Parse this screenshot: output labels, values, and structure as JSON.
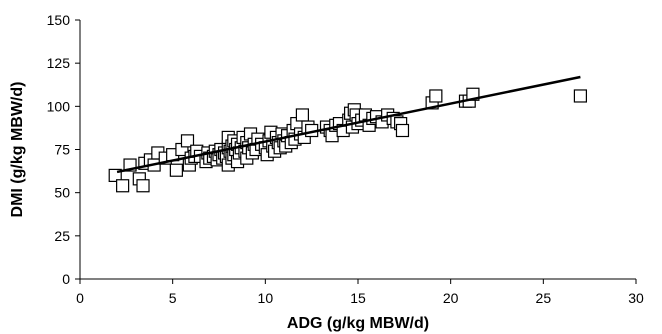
{
  "chart_data": {
    "type": "scatter",
    "title": "",
    "xlabel": "ADG (g/kg MBW/d)",
    "ylabel": "DMI (g/kg MBW/d)",
    "xlim": [
      0,
      30
    ],
    "ylim": [
      0,
      150
    ],
    "xticks": [
      0,
      5,
      10,
      15,
      20,
      25,
      30
    ],
    "yticks": [
      0,
      25,
      50,
      75,
      100,
      125,
      150
    ],
    "grid": false,
    "legend": "none",
    "marker": "open-square",
    "colors": {
      "marker": "#000000",
      "line": "#000000",
      "axis": "#000000"
    },
    "series": [
      {
        "points": [
          [
            1.9,
            60
          ],
          [
            2.3,
            54
          ],
          [
            2.7,
            66
          ],
          [
            3.2,
            58
          ],
          [
            3.4,
            54
          ],
          [
            3.5,
            67
          ],
          [
            3.8,
            69
          ],
          [
            4.0,
            66
          ],
          [
            4.2,
            73
          ],
          [
            4.6,
            70
          ],
          [
            5.0,
            72
          ],
          [
            5.2,
            63
          ],
          [
            5.5,
            75
          ],
          [
            5.8,
            80
          ],
          [
            5.9,
            66
          ],
          [
            6.0,
            70
          ],
          [
            6.2,
            71
          ],
          [
            6.3,
            74
          ],
          [
            6.5,
            71
          ],
          [
            6.8,
            68
          ],
          [
            6.9,
            73
          ],
          [
            7.0,
            70
          ],
          [
            7.2,
            71
          ],
          [
            7.3,
            74
          ],
          [
            7.4,
            69
          ],
          [
            7.5,
            72
          ],
          [
            7.6,
            75
          ],
          [
            7.7,
            70
          ],
          [
            7.8,
            73
          ],
          [
            7.9,
            71
          ],
          [
            8.0,
            66
          ],
          [
            8.0,
            76
          ],
          [
            8.0,
            82
          ],
          [
            8.1,
            74
          ],
          [
            8.2,
            70
          ],
          [
            8.2,
            77
          ],
          [
            8.3,
            72
          ],
          [
            8.3,
            80
          ],
          [
            8.4,
            75
          ],
          [
            8.5,
            68
          ],
          [
            8.5,
            78
          ],
          [
            8.6,
            73
          ],
          [
            8.7,
            76
          ],
          [
            8.8,
            82
          ],
          [
            8.9,
            74
          ],
          [
            9.0,
            79
          ],
          [
            9.0,
            70
          ],
          [
            9.1,
            76
          ],
          [
            9.2,
            84
          ],
          [
            9.3,
            73
          ],
          [
            9.4,
            78
          ],
          [
            9.5,
            75
          ],
          [
            9.6,
            81
          ],
          [
            9.8,
            78
          ],
          [
            10.0,
            76
          ],
          [
            10.1,
            72
          ],
          [
            10.2,
            80
          ],
          [
            10.3,
            85
          ],
          [
            10.4,
            77
          ],
          [
            10.5,
            74
          ],
          [
            10.6,
            82
          ],
          [
            10.7,
            79
          ],
          [
            10.8,
            76
          ],
          [
            10.9,
            84
          ],
          [
            11.0,
            80
          ],
          [
            11.1,
            77
          ],
          [
            11.2,
            83
          ],
          [
            11.4,
            79
          ],
          [
            11.5,
            86
          ],
          [
            11.6,
            81
          ],
          [
            11.7,
            90
          ],
          [
            11.9,
            84
          ],
          [
            12.0,
            95
          ],
          [
            12.1,
            82
          ],
          [
            12.3,
            88
          ],
          [
            12.5,
            86
          ],
          [
            13.3,
            88
          ],
          [
            13.5,
            86
          ],
          [
            13.6,
            83
          ],
          [
            13.8,
            89
          ],
          [
            14.0,
            90
          ],
          [
            14.2,
            86
          ],
          [
            14.5,
            92
          ],
          [
            14.6,
            96
          ],
          [
            14.7,
            88
          ],
          [
            14.8,
            98
          ],
          [
            14.9,
            95
          ],
          [
            15.0,
            90
          ],
          [
            15.2,
            92
          ],
          [
            15.4,
            95
          ],
          [
            15.6,
            89
          ],
          [
            15.8,
            93
          ],
          [
            16.0,
            94
          ],
          [
            16.3,
            91
          ],
          [
            16.6,
            95
          ],
          [
            16.9,
            93
          ],
          [
            17.1,
            91
          ],
          [
            17.3,
            90
          ],
          [
            17.4,
            86
          ],
          [
            19.0,
            102
          ],
          [
            19.2,
            106
          ],
          [
            20.8,
            103
          ],
          [
            21.0,
            103
          ],
          [
            21.2,
            107
          ],
          [
            27.0,
            106
          ]
        ]
      }
    ],
    "trendline": {
      "type": "linear",
      "x": [
        2,
        27
      ],
      "y": [
        62,
        117
      ]
    }
  }
}
